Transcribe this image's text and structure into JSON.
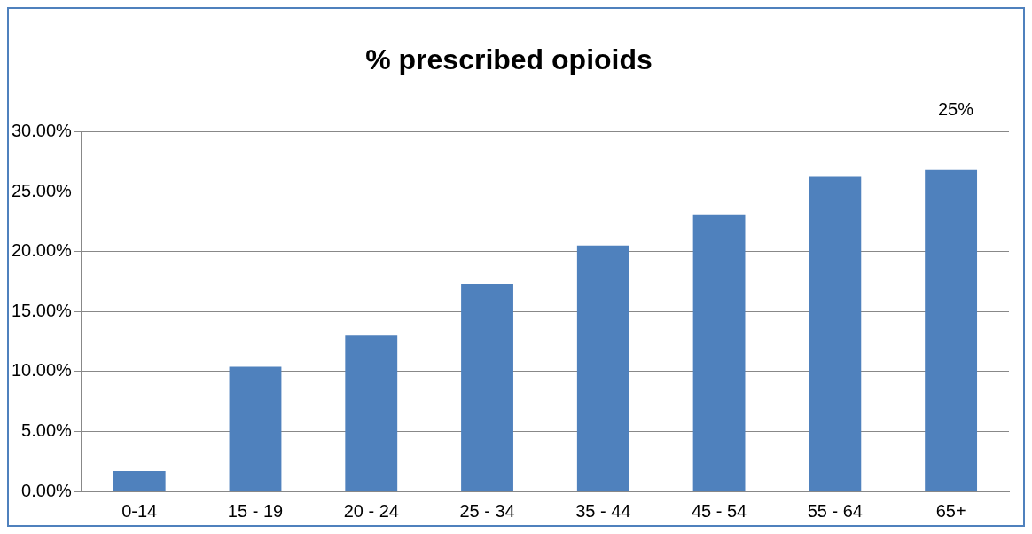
{
  "chart_data": {
    "type": "bar",
    "title": "% prescribed opioids",
    "categories": [
      "0-14",
      "15 - 19",
      "20 - 24",
      "25 - 34",
      "35 - 44",
      "45 - 54",
      "55 - 64",
      "65+"
    ],
    "values": [
      1.7,
      10.4,
      13.0,
      17.3,
      20.5,
      23.1,
      26.3,
      26.8
    ],
    "color": "#4f81bd",
    "ylim": [
      0,
      30
    ],
    "yticks": [
      {
        "value": 0,
        "label": "0.00%"
      },
      {
        "value": 5,
        "label": "5.00%"
      },
      {
        "value": 10,
        "label": "10.00%"
      },
      {
        "value": 15,
        "label": "15.00%"
      },
      {
        "value": 20,
        "label": "20.00%"
      },
      {
        "value": 25,
        "label": "25.00%"
      },
      {
        "value": 30,
        "label": "30.00%"
      }
    ],
    "grid": "y",
    "annotations": [
      "25%"
    ]
  }
}
